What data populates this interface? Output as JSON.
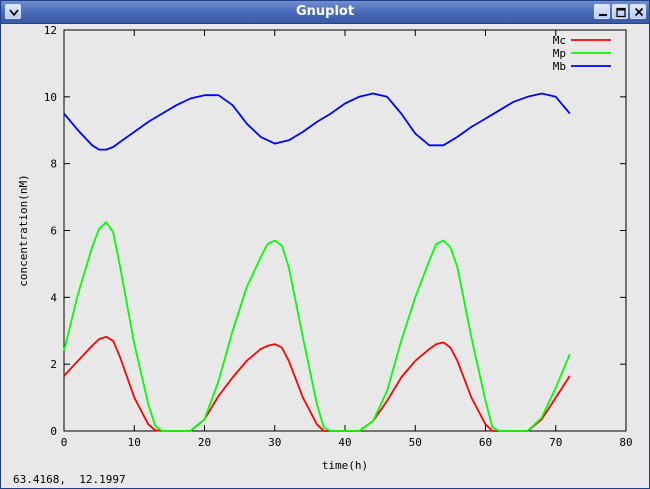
{
  "window": {
    "title": "Gnuplot",
    "buttons": [
      "menu",
      "minimize",
      "maximize",
      "close"
    ],
    "icons": {
      "menu": "chevron-down-icon",
      "minimize": "minimize-icon",
      "maximize": "maximize-icon",
      "close": "close-icon"
    }
  },
  "status": {
    "coords": "63.4168,  12.1997"
  },
  "chart_data": {
    "type": "line",
    "title": "",
    "xlabel": "time(h)",
    "ylabel": "concentration(nM)",
    "xlim": [
      0,
      80
    ],
    "ylim": [
      0,
      12
    ],
    "xticks": [
      "0",
      "10",
      "20",
      "30",
      "40",
      "50",
      "60",
      "70",
      "80"
    ],
    "yticks": [
      "0",
      "2",
      "4",
      "6",
      "8",
      "10",
      "12"
    ],
    "grid": false,
    "legend": "top-right",
    "series": [
      {
        "name": "Mc",
        "color": "#ff0000",
        "x": [
          0,
          2,
          4,
          5,
          6,
          7,
          8,
          10,
          12,
          13,
          14,
          16,
          18,
          20,
          22,
          24,
          26,
          28,
          29,
          30,
          31,
          32,
          34,
          36,
          37,
          38,
          40,
          42,
          44,
          46,
          48,
          50,
          52,
          53,
          54,
          55,
          56,
          58,
          60,
          61,
          62,
          64,
          66,
          68,
          70,
          72
        ],
        "y": [
          1.65,
          2.1,
          2.55,
          2.75,
          2.82,
          2.7,
          2.2,
          1.0,
          0.2,
          0.02,
          0,
          0,
          0,
          0.35,
          1.05,
          1.6,
          2.1,
          2.45,
          2.55,
          2.6,
          2.5,
          2.1,
          1.0,
          0.2,
          0,
          0,
          0,
          0,
          0.3,
          0.9,
          1.6,
          2.1,
          2.45,
          2.6,
          2.65,
          2.5,
          2.1,
          1.0,
          0.2,
          0,
          0,
          0,
          0,
          0.35,
          1.0,
          1.65
        ]
      },
      {
        "name": "Mp",
        "color": "#00ff00",
        "x": [
          0,
          2,
          4,
          5,
          6,
          7,
          8,
          10,
          12,
          13,
          14,
          16,
          18,
          20,
          22,
          24,
          26,
          28,
          29,
          30,
          31,
          32,
          34,
          36,
          37,
          38,
          40,
          42,
          44,
          46,
          48,
          50,
          52,
          53,
          54,
          55,
          56,
          58,
          60,
          61,
          62,
          64,
          66,
          68,
          70,
          72
        ],
        "y": [
          2.4,
          4.1,
          5.5,
          6.05,
          6.25,
          5.95,
          4.9,
          2.6,
          0.8,
          0.15,
          0,
          0,
          0,
          0.35,
          1.5,
          3.0,
          4.3,
          5.2,
          5.6,
          5.7,
          5.55,
          4.9,
          2.8,
          0.8,
          0.1,
          0,
          0,
          0,
          0.3,
          1.2,
          2.7,
          4.0,
          5.1,
          5.6,
          5.7,
          5.5,
          4.9,
          2.8,
          0.9,
          0.1,
          0,
          0,
          0,
          0.4,
          1.3,
          2.3
        ]
      },
      {
        "name": "Mb",
        "color": "#0000ff",
        "x": [
          0,
          2,
          4,
          5,
          6,
          7,
          8,
          10,
          12,
          14,
          16,
          18,
          20,
          22,
          24,
          26,
          28,
          30,
          32,
          34,
          36,
          38,
          40,
          42,
          44,
          46,
          48,
          50,
          52,
          54,
          56,
          58,
          60,
          62,
          64,
          66,
          68,
          70,
          72
        ],
        "y": [
          9.5,
          9.0,
          8.55,
          8.42,
          8.42,
          8.5,
          8.65,
          8.95,
          9.25,
          9.5,
          9.75,
          9.95,
          10.05,
          10.05,
          9.75,
          9.2,
          8.8,
          8.6,
          8.7,
          8.95,
          9.25,
          9.5,
          9.8,
          10.0,
          10.1,
          10.0,
          9.5,
          8.9,
          8.55,
          8.55,
          8.8,
          9.1,
          9.35,
          9.6,
          9.85,
          10.0,
          10.1,
          10.0,
          9.5
        ]
      }
    ]
  }
}
